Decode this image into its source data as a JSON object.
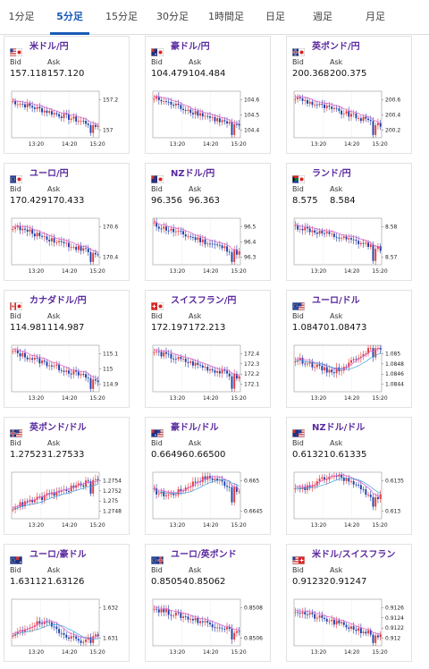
{
  "tabs": [
    {
      "label": "1分足",
      "active": false
    },
    {
      "label": "5分足",
      "active": true
    },
    {
      "label": "15分足",
      "active": false
    },
    {
      "label": "30分足",
      "active": false
    },
    {
      "label": "1時間足",
      "active": false
    },
    {
      "label": "日足",
      "active": false
    },
    {
      "label": "週足",
      "active": false
    },
    {
      "label": "月足",
      "active": false
    }
  ],
  "labels": {
    "bid": "Bid",
    "ask": "Ask"
  },
  "x_ticks": [
    "13:20",
    "14:20",
    "15:20"
  ],
  "colors": {
    "up": "#e33a3a",
    "down": "#1f3fa8",
    "ma1": "#e060d0",
    "ma2": "#3aa0e0",
    "pair": "#5a2a9e",
    "tab_active": "#1a5ab8"
  },
  "cards": [
    {
      "pair": "米ドル/円",
      "flag": "us-jp",
      "bid": "157.118",
      "ask": "157.120",
      "yticks": [
        "157.2",
        "157"
      ],
      "trend": "down",
      "start": 0.78,
      "end": 0.25
    },
    {
      "pair": "豪ドル/円",
      "flag": "au-jp",
      "bid": "104.479",
      "ask": "104.484",
      "yticks": [
        "104.6",
        "104.5",
        "104.4"
      ],
      "trend": "down",
      "start": 0.85,
      "end": 0.22
    },
    {
      "pair": "英ポンド/円",
      "flag": "gb-jp",
      "bid": "200.368",
      "ask": "200.375",
      "yticks": [
        "200.6",
        "200.4",
        "200.2"
      ],
      "trend": "down",
      "start": 0.86,
      "end": 0.28
    },
    {
      "pair": "ユーロ/円",
      "flag": "eu-jp",
      "bid": "170.429",
      "ask": "170.433",
      "yticks": [
        "170.6",
        "170.4"
      ],
      "trend": "down",
      "start": 0.82,
      "end": 0.22
    },
    {
      "pair": "NZドル/円",
      "flag": "nz-jp",
      "bid": "96.356",
      "ask": "96.363",
      "yticks": [
        "96.5",
        "96.4",
        "96.3"
      ],
      "trend": "down",
      "start": 0.86,
      "end": 0.25
    },
    {
      "pair": "ランド/円",
      "flag": "za-jp",
      "bid": "8.575",
      "ask": "8.584",
      "yticks": [
        "8.58",
        "8.57"
      ],
      "trend": "down",
      "start": 0.82,
      "end": 0.35
    },
    {
      "pair": "カナダドル/円",
      "flag": "ca-jp",
      "bid": "114.981",
      "ask": "114.987",
      "yticks": [
        "115.1",
        "115",
        "114.9"
      ],
      "trend": "down",
      "start": 0.86,
      "end": 0.22
    },
    {
      "pair": "スイスフラン/円",
      "flag": "ch-jp",
      "bid": "172.197",
      "ask": "172.213",
      "yticks": [
        "172.4",
        "172.3",
        "172.2",
        "172.1"
      ],
      "trend": "down",
      "start": 0.86,
      "end": 0.3
    },
    {
      "pair": "ユーロ/ドル",
      "flag": "eu-us",
      "bid": "1.08470",
      "ask": "1.08473",
      "yticks": [
        "1.085",
        "1.0848",
        "1.0846",
        "1.0844"
      ],
      "trend": "wave",
      "start": 0.5,
      "end": 0.8
    },
    {
      "pair": "英ポンド/ドル",
      "flag": "gb-us",
      "bid": "1.27523",
      "ask": "1.27533",
      "yticks": [
        "1.2754",
        "1.2752",
        "1.275",
        "1.2748"
      ],
      "trend": "up",
      "start": 0.25,
      "end": 0.85
    },
    {
      "pair": "豪ドル/ドル",
      "flag": "au-us",
      "bid": "0.66496",
      "ask": "0.66500",
      "yticks": [
        "0.665",
        "0.6645"
      ],
      "trend": "wave",
      "start": 0.7,
      "end": 0.7
    },
    {
      "pair": "NZドル/ドル",
      "flag": "nz-us",
      "bid": "0.61321",
      "ask": "0.61335",
      "yticks": [
        "0.6135",
        "0.613"
      ],
      "trend": "wave",
      "start": 0.8,
      "end": 0.65
    },
    {
      "pair": "ユーロ/豪ドル",
      "flag": "eu-au",
      "bid": "1.63112",
      "ask": "1.63126",
      "yticks": [
        "1.632",
        "1.631"
      ],
      "trend": "wave",
      "start": 0.3,
      "end": 0.3
    },
    {
      "pair": "ユーロ/英ポンド",
      "flag": "eu-gb",
      "bid": "0.85054",
      "ask": "0.85062",
      "yticks": [
        "0.8508",
        "0.8506"
      ],
      "trend": "down",
      "start": 0.8,
      "end": 0.3
    },
    {
      "pair": "米ドル/スイスフラン",
      "flag": "us-ch",
      "bid": "0.91232",
      "ask": "0.91247",
      "yticks": [
        "0.9126",
        "0.9124",
        "0.9122",
        "0.912"
      ],
      "trend": "down",
      "start": 0.75,
      "end": 0.2
    }
  ]
}
